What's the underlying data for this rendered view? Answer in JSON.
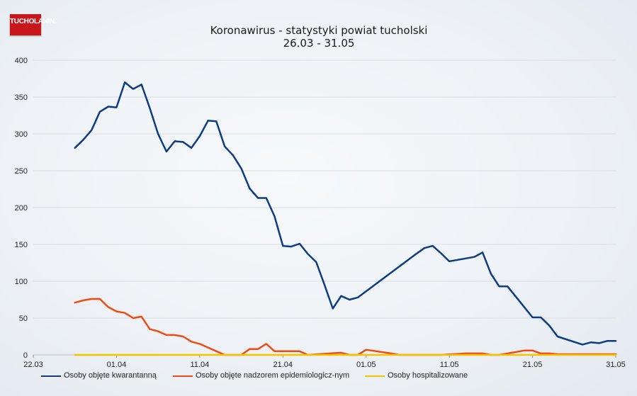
{
  "logo": {
    "text": "TUCHOLANIN."
  },
  "chart_data": {
    "type": "line",
    "title": "Koronawirus - statystyki powiat tucholski",
    "subtitle": "26.03 - 31.05",
    "x_ticks": [
      "22.03",
      "01.04",
      "11.04",
      "21.04",
      "01.05",
      "11.05",
      "21.05",
      "31.05"
    ],
    "y_ticks": [
      "0",
      "50",
      "100",
      "150",
      "200",
      "250",
      "300",
      "350",
      "400"
    ],
    "ylim": [
      0,
      400
    ],
    "x_domain": [
      "2020-03-22",
      "2020-05-31"
    ],
    "grid": true,
    "legend_position": "bottom",
    "series": [
      {
        "name": "Osoby objęte kwarantanną",
        "color": "#0d3c85",
        "points": [
          [
            "2020-03-27",
            281
          ],
          [
            "2020-03-28",
            292
          ],
          [
            "2020-03-29",
            305
          ],
          [
            "2020-03-30",
            330
          ],
          [
            "2020-03-31",
            337
          ],
          [
            "2020-04-01",
            336
          ],
          [
            "2020-04-02",
            370
          ],
          [
            "2020-04-03",
            361
          ],
          [
            "2020-04-04",
            367
          ],
          [
            "2020-04-05",
            335
          ],
          [
            "2020-04-06",
            300
          ],
          [
            "2020-04-07",
            276
          ],
          [
            "2020-04-08",
            290
          ],
          [
            "2020-04-09",
            289
          ],
          [
            "2020-04-10",
            281
          ],
          [
            "2020-04-11",
            297
          ],
          [
            "2020-04-12",
            318
          ],
          [
            "2020-04-13",
            317
          ],
          [
            "2020-04-14",
            283
          ],
          [
            "2020-04-15",
            271
          ],
          [
            "2020-04-16",
            253
          ],
          [
            "2020-04-17",
            226
          ],
          [
            "2020-04-18",
            213
          ],
          [
            "2020-04-19",
            213
          ],
          [
            "2020-04-20",
            188
          ],
          [
            "2020-04-21",
            148
          ],
          [
            "2020-04-22",
            147
          ],
          [
            "2020-04-23",
            151
          ],
          [
            "2020-04-24",
            137
          ],
          [
            "2020-04-25",
            126
          ],
          [
            "2020-04-26",
            95
          ],
          [
            "2020-04-27",
            63
          ],
          [
            "2020-04-28",
            80
          ],
          [
            "2020-04-29",
            75
          ],
          [
            "2020-04-30",
            78
          ],
          [
            "2020-05-07",
            137
          ],
          [
            "2020-05-08",
            145
          ],
          [
            "2020-05-09",
            148
          ],
          [
            "2020-05-10",
            138
          ],
          [
            "2020-05-11",
            127
          ],
          [
            "2020-05-14",
            133
          ],
          [
            "2020-05-15",
            139
          ],
          [
            "2020-05-16",
            110
          ],
          [
            "2020-05-17",
            93
          ],
          [
            "2020-05-18",
            93
          ],
          [
            "2020-05-21",
            51
          ],
          [
            "2020-05-22",
            51
          ],
          [
            "2020-05-23",
            40
          ],
          [
            "2020-05-24",
            25
          ],
          [
            "2020-05-27",
            14
          ],
          [
            "2020-05-28",
            17
          ],
          [
            "2020-05-29",
            16
          ],
          [
            "2020-05-30",
            19
          ],
          [
            "2020-05-31",
            19
          ]
        ]
      },
      {
        "name": "Osoby objęte nadzorem epidemiologicz-nym",
        "color": "#ef4b12",
        "points": [
          [
            "2020-03-27",
            71
          ],
          [
            "2020-03-28",
            74
          ],
          [
            "2020-03-29",
            76
          ],
          [
            "2020-03-30",
            76
          ],
          [
            "2020-03-31",
            65
          ],
          [
            "2020-04-01",
            59
          ],
          [
            "2020-04-02",
            57
          ],
          [
            "2020-04-03",
            50
          ],
          [
            "2020-04-04",
            52
          ],
          [
            "2020-04-05",
            35
          ],
          [
            "2020-04-06",
            32
          ],
          [
            "2020-04-07",
            27
          ],
          [
            "2020-04-08",
            27
          ],
          [
            "2020-04-09",
            25
          ],
          [
            "2020-04-10",
            18
          ],
          [
            "2020-04-11",
            15
          ],
          [
            "2020-04-12",
            10
          ],
          [
            "2020-04-13",
            5
          ],
          [
            "2020-04-14",
            0
          ],
          [
            "2020-04-16",
            0
          ],
          [
            "2020-04-17",
            8
          ],
          [
            "2020-04-18",
            8
          ],
          [
            "2020-04-19",
            15
          ],
          [
            "2020-04-20",
            5
          ],
          [
            "2020-04-23",
            5
          ],
          [
            "2020-04-24",
            0
          ],
          [
            "2020-04-28",
            3
          ],
          [
            "2020-04-29",
            0
          ],
          [
            "2020-04-30",
            0
          ],
          [
            "2020-05-01",
            7
          ],
          [
            "2020-05-04",
            2
          ],
          [
            "2020-05-05",
            0
          ],
          [
            "2020-05-10",
            0
          ],
          [
            "2020-05-13",
            2
          ],
          [
            "2020-05-15",
            2
          ],
          [
            "2020-05-16",
            0
          ],
          [
            "2020-05-17",
            0
          ],
          [
            "2020-05-20",
            6
          ],
          [
            "2020-05-21",
            6
          ],
          [
            "2020-05-22",
            2
          ],
          [
            "2020-05-23",
            2
          ],
          [
            "2020-05-24",
            1
          ],
          [
            "2020-05-31",
            1
          ]
        ]
      },
      {
        "name": "Osoby hospitalizowane",
        "color": "#f5c400",
        "points": [
          [
            "2020-03-27",
            0
          ],
          [
            "2020-04-15",
            0
          ],
          [
            "2020-05-01",
            0
          ],
          [
            "2020-05-15",
            0
          ],
          [
            "2020-05-31",
            0
          ]
        ]
      }
    ]
  }
}
